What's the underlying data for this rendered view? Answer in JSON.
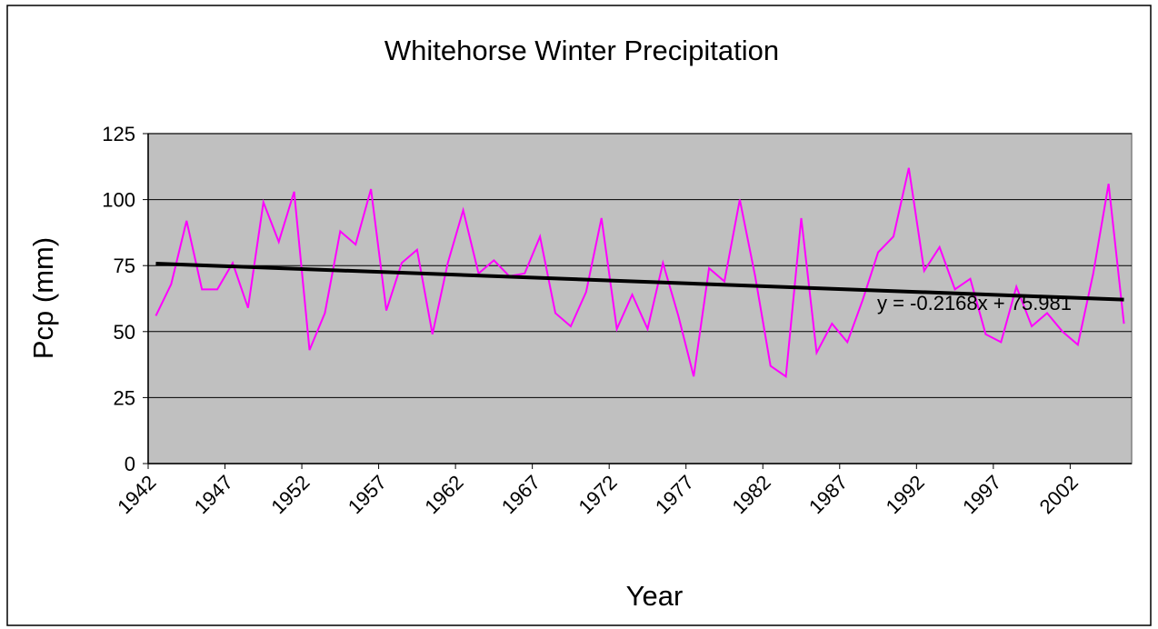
{
  "chart_data": {
    "type": "line",
    "title": "Whitehorse Winter Precipitation",
    "x_label": "Year",
    "y_label": "Pcp (mm)",
    "categories": [
      "1942",
      null,
      null,
      null,
      null,
      "1947",
      null,
      null,
      null,
      null,
      "1952",
      null,
      null,
      null,
      null,
      "1957",
      null,
      null,
      null,
      null,
      "1962",
      null,
      null,
      null,
      null,
      "1967",
      null,
      null,
      null,
      null,
      "1972",
      null,
      null,
      null,
      null,
      "1977",
      null,
      null,
      null,
      null,
      "1982",
      null,
      null,
      null,
      null,
      "1987",
      null,
      null,
      null,
      null,
      "1992",
      null,
      null,
      null,
      null,
      "1997",
      null,
      null,
      null,
      null,
      "2002",
      null,
      null,
      null
    ],
    "series": [
      {
        "name": "Pcp",
        "color": "#ff00ff",
        "values": [
          56,
          68,
          92,
          66,
          66,
          76,
          59,
          99,
          84,
          103,
          43,
          57,
          88,
          83,
          104,
          58,
          76,
          81,
          49,
          76,
          96,
          72,
          77,
          71,
          72,
          86,
          57,
          52,
          65,
          93,
          51,
          64,
          51,
          76,
          56,
          33,
          74,
          69,
          100,
          71,
          37,
          33,
          93,
          42,
          53,
          46,
          62,
          80,
          86,
          112,
          73,
          82,
          66,
          70,
          49,
          46,
          67,
          52,
          57,
          50,
          45,
          72,
          106,
          53
        ]
      }
    ],
    "trendline": {
      "slope": -0.2168,
      "intercept": 75.981,
      "color": "#000000",
      "label": "y = -0.2168x + 75.981"
    },
    "ylim": [
      0,
      125
    ],
    "yticks": [
      0,
      25,
      50,
      75,
      100,
      125
    ],
    "grid": true,
    "plot_background": "#c0c0c0"
  }
}
